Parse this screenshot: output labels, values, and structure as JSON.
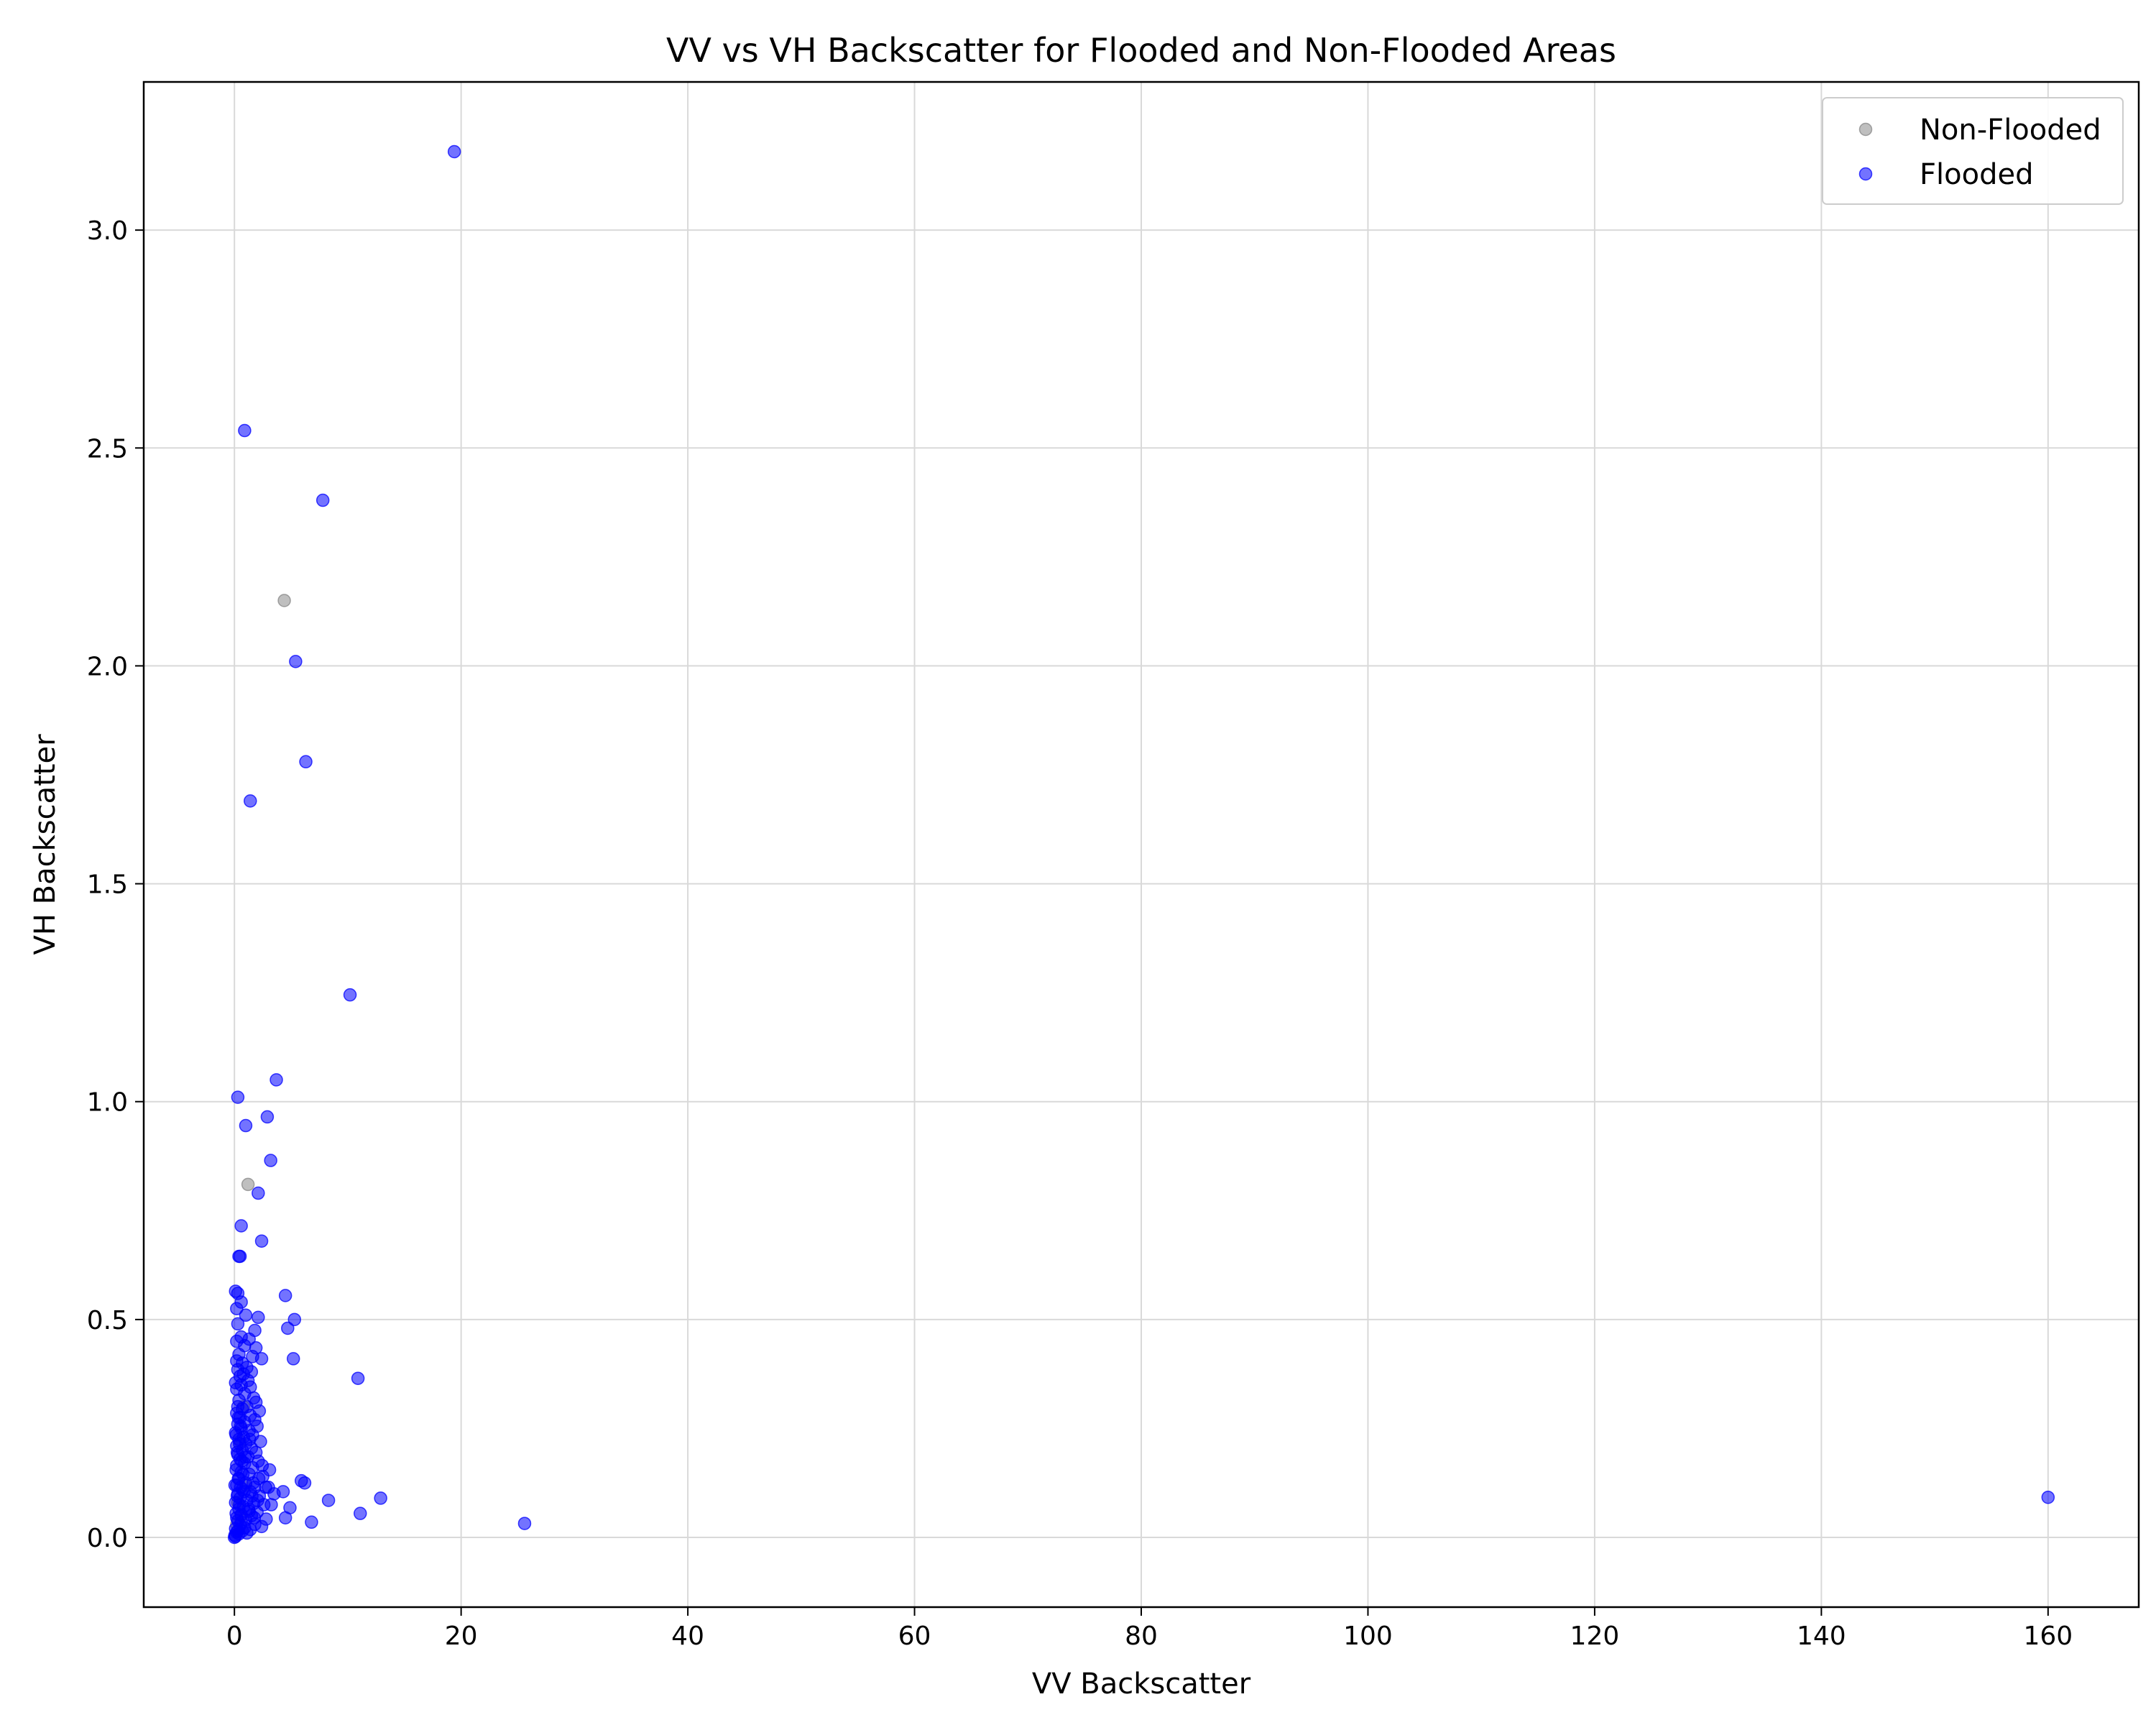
{
  "chart_data": {
    "type": "scatter",
    "title": "VV vs VH Backscatter for Flooded and Non-Flooded Areas",
    "xlabel": "VV Backscatter",
    "ylabel": "VH Backscatter",
    "xlim": [
      -8,
      168
    ],
    "ylim": [
      -0.16,
      3.34
    ],
    "xticks": [
      0,
      20,
      40,
      60,
      80,
      100,
      120,
      140,
      160
    ],
    "yticks": [
      0.0,
      0.5,
      1.0,
      1.5,
      2.0,
      2.5,
      3.0
    ],
    "xtick_labels": [
      "0",
      "20",
      "40",
      "60",
      "80",
      "100",
      "120",
      "140",
      "160"
    ],
    "ytick_labels": [
      "0.0",
      "0.5",
      "1.0",
      "1.5",
      "2.0",
      "2.5",
      "3.0"
    ],
    "grid": true,
    "legend_position": "top-right",
    "series": [
      {
        "name": "Non-Flooded",
        "color": "#808080",
        "opacity": 0.5,
        "points": [
          [
            4.4,
            2.15
          ],
          [
            1.2,
            0.81
          ],
          [
            0.8,
            0.3
          ],
          [
            0.5,
            0.22
          ],
          [
            1.0,
            0.12
          ],
          [
            0.3,
            0.08
          ],
          [
            0.6,
            0.05
          ],
          [
            0.2,
            0.03
          ]
        ]
      },
      {
        "name": "Flooded",
        "color": "#0000ff",
        "opacity": 0.55,
        "points": [
          [
            19.4,
            3.18
          ],
          [
            0.9,
            2.54
          ],
          [
            7.8,
            2.38
          ],
          [
            5.4,
            2.01
          ],
          [
            6.3,
            1.78
          ],
          [
            1.4,
            1.69
          ],
          [
            10.2,
            1.245
          ],
          [
            3.7,
            1.05
          ],
          [
            0.3,
            1.01
          ],
          [
            2.9,
            0.965
          ],
          [
            1.0,
            0.945
          ],
          [
            3.2,
            0.865
          ],
          [
            2.1,
            0.79
          ],
          [
            0.6,
            0.715
          ],
          [
            2.4,
            0.68
          ],
          [
            0.4,
            0.645
          ],
          [
            0.5,
            0.645
          ],
          [
            0.1,
            0.565
          ],
          [
            0.3,
            0.56
          ],
          [
            4.5,
            0.555
          ],
          [
            0.6,
            0.54
          ],
          [
            0.2,
            0.525
          ],
          [
            1.0,
            0.51
          ],
          [
            2.1,
            0.505
          ],
          [
            5.3,
            0.5
          ],
          [
            0.3,
            0.49
          ],
          [
            4.7,
            0.48
          ],
          [
            1.8,
            0.475
          ],
          [
            0.6,
            0.46
          ],
          [
            1.3,
            0.455
          ],
          [
            0.2,
            0.45
          ],
          [
            0.9,
            0.44
          ],
          [
            1.9,
            0.435
          ],
          [
            0.4,
            0.42
          ],
          [
            1.6,
            0.415
          ],
          [
            2.4,
            0.41
          ],
          [
            5.2,
            0.41
          ],
          [
            0.2,
            0.405
          ],
          [
            0.7,
            0.4
          ],
          [
            1.1,
            0.39
          ],
          [
            0.3,
            0.385
          ],
          [
            1.5,
            0.38
          ],
          [
            0.8,
            0.375
          ],
          [
            0.5,
            0.37
          ],
          [
            10.9,
            0.365
          ],
          [
            1.2,
            0.36
          ],
          [
            0.1,
            0.355
          ],
          [
            0.6,
            0.35
          ],
          [
            1.4,
            0.345
          ],
          [
            0.2,
            0.34
          ],
          [
            0.9,
            0.33
          ],
          [
            1.7,
            0.32
          ],
          [
            0.4,
            0.315
          ],
          [
            1.9,
            0.31
          ],
          [
            0.3,
            0.3
          ],
          [
            1.1,
            0.3
          ],
          [
            0.7,
            0.295
          ],
          [
            2.2,
            0.29
          ],
          [
            0.2,
            0.285
          ],
          [
            1.4,
            0.28
          ],
          [
            0.5,
            0.275
          ],
          [
            1.8,
            0.27
          ],
          [
            0.9,
            0.265
          ],
          [
            0.3,
            0.26
          ],
          [
            2.0,
            0.255
          ],
          [
            0.6,
            0.25
          ],
          [
            1.3,
            0.245
          ],
          [
            0.1,
            0.24
          ],
          [
            1.6,
            0.235
          ],
          [
            0.8,
            0.23
          ],
          [
            0.4,
            0.225
          ],
          [
            2.3,
            0.22
          ],
          [
            1.0,
            0.215
          ],
          [
            0.2,
            0.21
          ],
          [
            1.5,
            0.205
          ],
          [
            0.7,
            0.2
          ],
          [
            1.9,
            0.195
          ],
          [
            0.3,
            0.19
          ],
          [
            1.2,
            0.185
          ],
          [
            0.5,
            0.18
          ],
          [
            2.1,
            0.175
          ],
          [
            0.9,
            0.17
          ],
          [
            0.2,
            0.165
          ],
          [
            1.6,
            0.16
          ],
          [
            3.1,
            0.155
          ],
          [
            0.6,
            0.15
          ],
          [
            1.3,
            0.145
          ],
          [
            2.5,
            0.14
          ],
          [
            0.4,
            0.135
          ],
          [
            5.9,
            0.13
          ],
          [
            6.2,
            0.125
          ],
          [
            1.0,
            0.125
          ],
          [
            0.2,
            0.12
          ],
          [
            1.8,
            0.115
          ],
          [
            3.0,
            0.115
          ],
          [
            0.7,
            0.11
          ],
          [
            4.3,
            0.105
          ],
          [
            1.4,
            0.105
          ],
          [
            0.3,
            0.1
          ],
          [
            3.5,
            0.1
          ],
          [
            2.2,
            0.095
          ],
          [
            0.5,
            0.09
          ],
          [
            12.9,
            0.09
          ],
          [
            160.0,
            0.092
          ],
          [
            1.1,
            0.085
          ],
          [
            8.3,
            0.085
          ],
          [
            0.1,
            0.08
          ],
          [
            1.7,
            0.078
          ],
          [
            2.6,
            0.075
          ],
          [
            0.8,
            0.07
          ],
          [
            4.9,
            0.068
          ],
          [
            0.4,
            0.065
          ],
          [
            1.3,
            0.06
          ],
          [
            2.0,
            0.058
          ],
          [
            11.1,
            0.055
          ],
          [
            0.6,
            0.052
          ],
          [
            1.5,
            0.05
          ],
          [
            4.5,
            0.045
          ],
          [
            0.2,
            0.045
          ],
          [
            2.8,
            0.042
          ],
          [
            1.0,
            0.04
          ],
          [
            0.3,
            0.038
          ],
          [
            6.8,
            0.035
          ],
          [
            25.6,
            0.032
          ],
          [
            1.8,
            0.03
          ],
          [
            0.5,
            0.028
          ],
          [
            2.4,
            0.025
          ],
          [
            0.9,
            0.022
          ],
          [
            0.1,
            0.02
          ],
          [
            1.4,
            0.018
          ],
          [
            0.7,
            0.015
          ],
          [
            0.2,
            0.012
          ],
          [
            1.1,
            0.01
          ],
          [
            0.4,
            0.008
          ],
          [
            0.05,
            0.005
          ],
          [
            0.1,
            0.002
          ],
          [
            0.0,
            0.0
          ],
          [
            0.3,
            0.015
          ],
          [
            0.6,
            0.035
          ],
          [
            0.15,
            0.055
          ],
          [
            0.45,
            0.075
          ],
          [
            0.25,
            0.095
          ],
          [
            0.55,
            0.115
          ],
          [
            0.35,
            0.135
          ],
          [
            0.15,
            0.155
          ],
          [
            0.65,
            0.175
          ],
          [
            0.25,
            0.195
          ],
          [
            0.45,
            0.215
          ],
          [
            0.15,
            0.235
          ],
          [
            0.55,
            0.255
          ],
          [
            0.35,
            0.275
          ],
          [
            0.75,
            0.145
          ],
          [
            0.85,
            0.105
          ],
          [
            1.25,
            0.065
          ],
          [
            1.65,
            0.125
          ],
          [
            2.05,
            0.085
          ],
          [
            0.95,
            0.185
          ],
          [
            1.35,
            0.225
          ],
          [
            1.75,
            0.045
          ],
          [
            2.45,
            0.165
          ],
          [
            2.75,
            0.115
          ],
          [
            3.25,
            0.075
          ],
          [
            2.15,
            0.135
          ],
          [
            1.55,
            0.095
          ],
          [
            0.05,
            0.12
          ]
        ]
      }
    ]
  }
}
